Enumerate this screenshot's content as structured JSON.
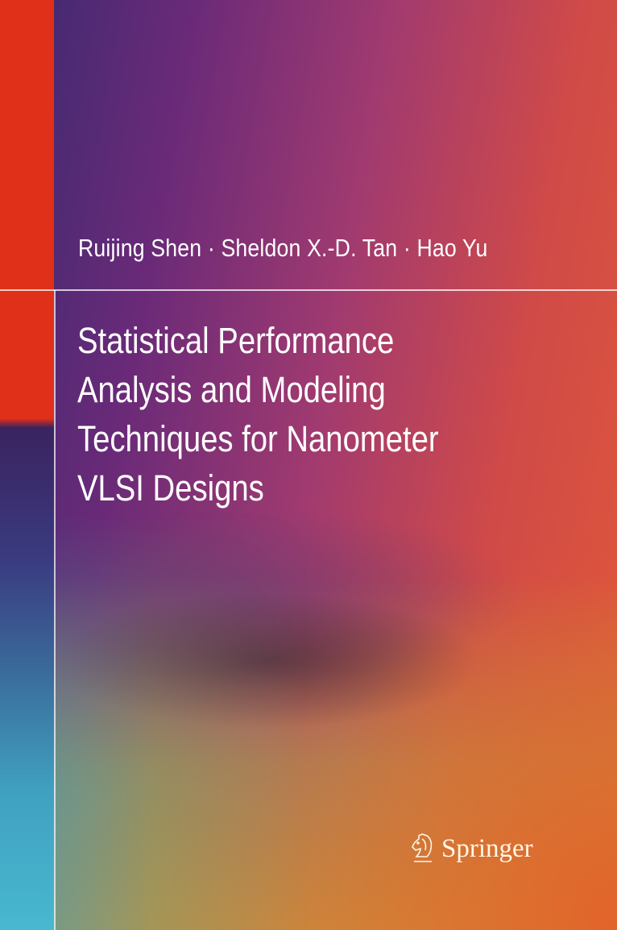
{
  "cover": {
    "authors": "Ruijing Shen · Sheldon X.-D. Tan · Hao Yu",
    "title_lines": [
      "Statistical Performance",
      "Analysis and Modeling",
      "Techniques for Nanometer",
      "VLSI Designs"
    ],
    "publisher": "Springer",
    "colors": {
      "strip_red": "#e0301a",
      "text": "#ffffff"
    }
  }
}
